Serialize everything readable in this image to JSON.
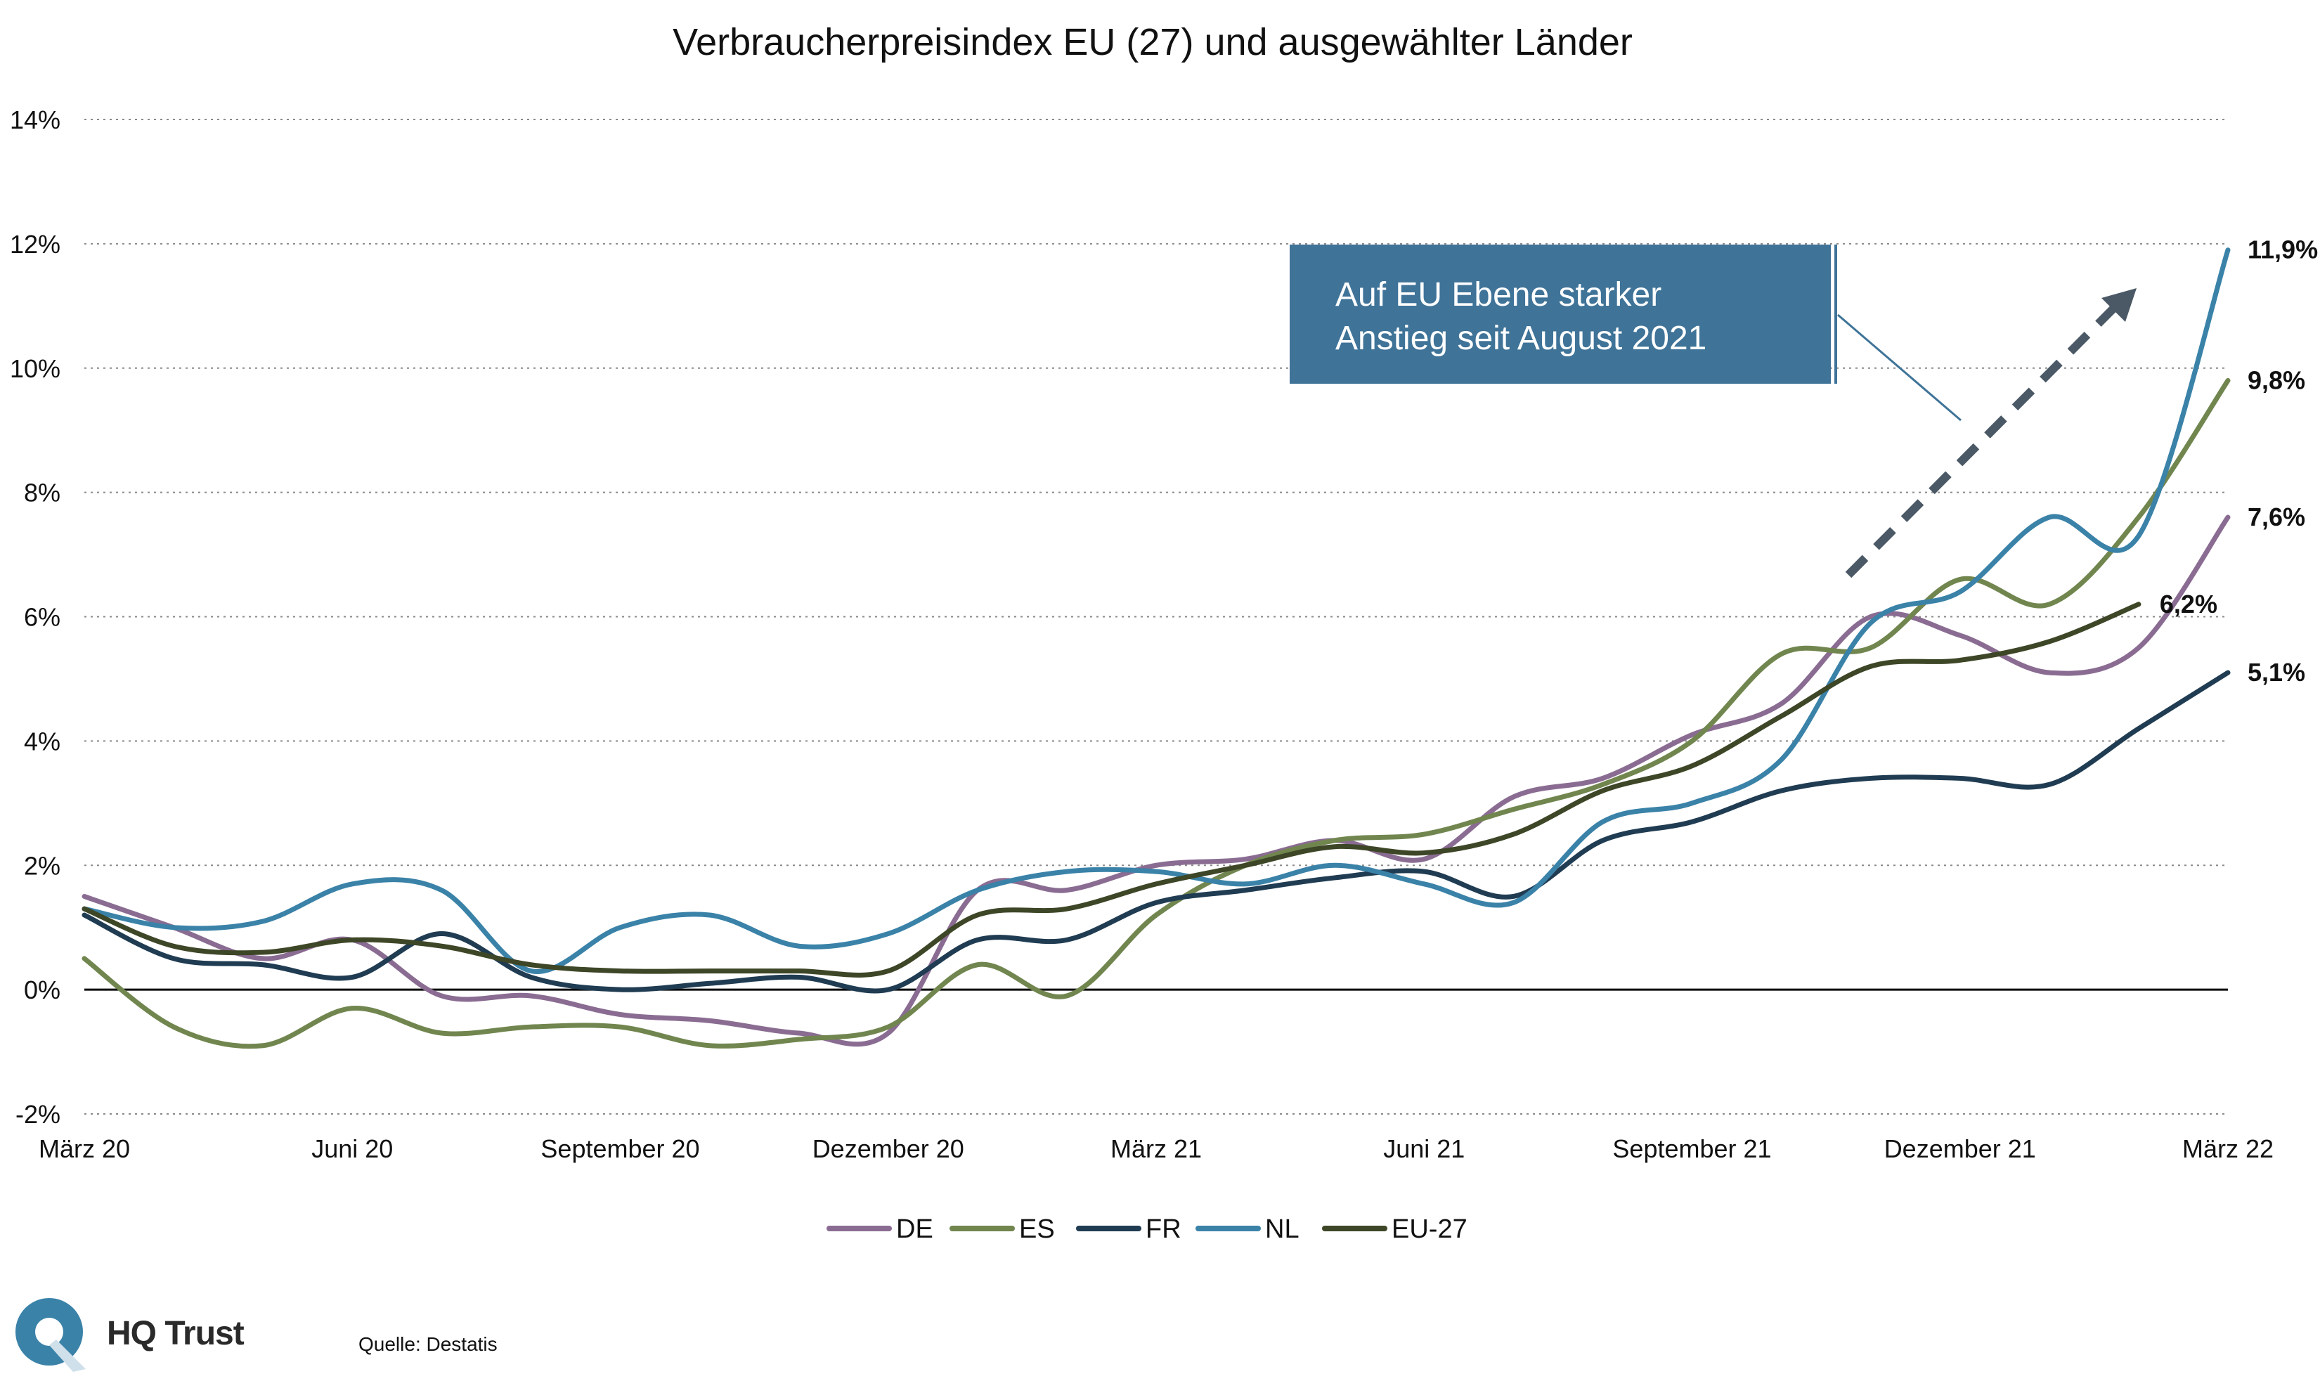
{
  "chart_data": {
    "type": "line",
    "title": "Verbraucherpreisindex EU (27) und ausgewählter Länder",
    "xlabel": "",
    "ylabel": "",
    "x_tick_labels": [
      "März 20",
      "Juni 20",
      "September 20",
      "Dezember 20",
      "März 21",
      "Juni 21",
      "September 21",
      "Dezember 21",
      "März 22"
    ],
    "y_tick_labels": [
      "14%",
      "12%",
      "10%",
      "8%",
      "6%",
      "4%",
      "2%",
      "0%",
      "-2%"
    ],
    "ylim": [
      -2,
      14
    ],
    "grid": "horizontal dotted",
    "legend_position": "bottom",
    "series": [
      {
        "name": "DE",
        "color": "#8a6c92",
        "x": [
          "2020-03",
          "2020-04",
          "2020-05",
          "2020-06",
          "2020-07",
          "2020-08",
          "2020-09",
          "2020-10",
          "2020-11",
          "2020-12",
          "2021-01",
          "2021-02",
          "2021-03",
          "2021-04",
          "2021-05",
          "2021-06",
          "2021-07",
          "2021-08",
          "2021-09",
          "2021-10",
          "2021-11",
          "2021-12",
          "2022-01",
          "2022-02",
          "2022-03"
        ],
        "values": [
          1.5,
          1.0,
          0.5,
          0.8,
          -0.1,
          -0.1,
          -0.4,
          -0.5,
          -0.7,
          -0.7,
          1.6,
          1.6,
          2.0,
          2.1,
          2.4,
          2.1,
          3.1,
          3.4,
          4.1,
          4.6,
          6.0,
          5.7,
          5.1,
          5.5,
          7.6
        ]
      },
      {
        "name": "ES",
        "color": "#71864f",
        "x": [
          "2020-03",
          "2020-04",
          "2020-05",
          "2020-06",
          "2020-07",
          "2020-08",
          "2020-09",
          "2020-10",
          "2020-11",
          "2020-12",
          "2021-01",
          "2021-02",
          "2021-03",
          "2021-04",
          "2021-05",
          "2021-06",
          "2021-07",
          "2021-08",
          "2021-09",
          "2021-10",
          "2021-11",
          "2021-12",
          "2022-01",
          "2022-02",
          "2022-03"
        ],
        "values": [
          0.5,
          -0.6,
          -0.9,
          -0.3,
          -0.7,
          -0.6,
          -0.6,
          -0.9,
          -0.8,
          -0.6,
          0.4,
          -0.1,
          1.2,
          2.0,
          2.4,
          2.5,
          2.9,
          3.3,
          4.0,
          5.4,
          5.5,
          6.6,
          6.2,
          7.6,
          9.8
        ]
      },
      {
        "name": "FR",
        "color": "#203c52",
        "x": [
          "2020-03",
          "2020-04",
          "2020-05",
          "2020-06",
          "2020-07",
          "2020-08",
          "2020-09",
          "2020-10",
          "2020-11",
          "2020-12",
          "2021-01",
          "2021-02",
          "2021-03",
          "2021-04",
          "2021-05",
          "2021-06",
          "2021-07",
          "2021-08",
          "2021-09",
          "2021-10",
          "2021-11",
          "2021-12",
          "2022-01",
          "2022-02",
          "2022-03"
        ],
        "values": [
          1.2,
          0.5,
          0.4,
          0.2,
          0.9,
          0.2,
          0.0,
          0.1,
          0.2,
          0.0,
          0.8,
          0.8,
          1.4,
          1.6,
          1.8,
          1.9,
          1.5,
          2.4,
          2.7,
          3.2,
          3.4,
          3.4,
          3.3,
          4.2,
          5.1
        ]
      },
      {
        "name": "NL",
        "color": "#3a82a8",
        "x": [
          "2020-03",
          "2020-04",
          "2020-05",
          "2020-06",
          "2020-07",
          "2020-08",
          "2020-09",
          "2020-10",
          "2020-11",
          "2020-12",
          "2021-01",
          "2021-02",
          "2021-03",
          "2021-04",
          "2021-05",
          "2021-06",
          "2021-07",
          "2021-08",
          "2021-09",
          "2021-10",
          "2021-11",
          "2021-12",
          "2022-01",
          "2022-02",
          "2022-03"
        ],
        "values": [
          1.3,
          1.0,
          1.1,
          1.7,
          1.6,
          0.3,
          1.0,
          1.2,
          0.7,
          0.9,
          1.6,
          1.9,
          1.9,
          1.7,
          2.0,
          1.7,
          1.4,
          2.7,
          3.0,
          3.7,
          5.9,
          6.4,
          7.6,
          7.3,
          11.9
        ]
      },
      {
        "name": "EU-27",
        "color": "#3d4626",
        "x": [
          "2020-03",
          "2020-04",
          "2020-05",
          "2020-06",
          "2020-07",
          "2020-08",
          "2020-09",
          "2020-10",
          "2020-11",
          "2020-12",
          "2021-01",
          "2021-02",
          "2021-03",
          "2021-04",
          "2021-05",
          "2021-06",
          "2021-07",
          "2021-08",
          "2021-09",
          "2021-10",
          "2021-11",
          "2021-12",
          "2022-01",
          "2022-02"
        ],
        "values": [
          1.3,
          0.7,
          0.6,
          0.8,
          0.7,
          0.4,
          0.3,
          0.3,
          0.3,
          0.3,
          1.2,
          1.3,
          1.7,
          2.0,
          2.3,
          2.2,
          2.5,
          3.2,
          3.6,
          4.4,
          5.2,
          5.3,
          5.6,
          6.2
        ]
      }
    ],
    "end_labels": [
      {
        "series": "NL",
        "text": "11,9%"
      },
      {
        "series": "ES",
        "text": "9,8%"
      },
      {
        "series": "DE",
        "text": "7,6%"
      },
      {
        "series": "EU-27",
        "text": "6,2%"
      },
      {
        "series": "FR",
        "text": "5,1%"
      }
    ],
    "annotation": {
      "lines": [
        "Auf EU Ebene starker",
        "Anstieg seit August 2021"
      ],
      "box_color": "#3f7398",
      "arrow_color": "#4b5966",
      "arrow_style": "dashed"
    }
  },
  "footer": {
    "source": "Quelle: Destatis",
    "logo_text": "HQ Trust",
    "logo_color": "#3a82a8"
  }
}
